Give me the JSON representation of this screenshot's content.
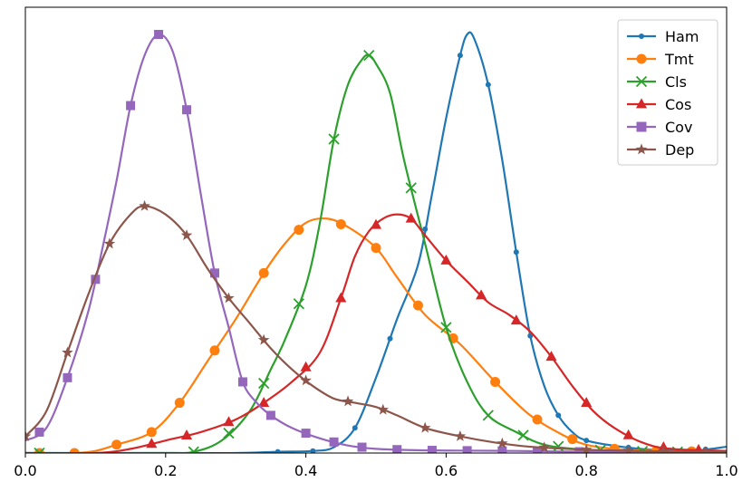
{
  "chart_data": {
    "type": "line",
    "title": "",
    "xlabel": "",
    "ylabel": "",
    "xlim": [
      0.0,
      1.0
    ],
    "ylim": [
      0.0,
      1.0
    ],
    "xticks": [
      "0.0",
      "0.2",
      "0.4",
      "0.6",
      "0.8",
      "1.0"
    ],
    "xtick_values": [
      0.0,
      0.2,
      0.4,
      0.6,
      0.8,
      1.0
    ],
    "yticks": [],
    "grid": false,
    "legend": {
      "placement": "top-right"
    },
    "series": [
      {
        "name": "Ham",
        "color": "#1f77b4",
        "marker": "circle",
        "points": [
          [
            0.0,
            0.0
          ],
          [
            0.2,
            0.0
          ],
          [
            0.3,
            0.0
          ],
          [
            0.36,
            0.003
          ],
          [
            0.41,
            0.005
          ],
          [
            0.44,
            0.014
          ],
          [
            0.47,
            0.06
          ],
          [
            0.5,
            0.18
          ],
          [
            0.53,
            0.32
          ],
          [
            0.56,
            0.45
          ],
          [
            0.58,
            0.62
          ],
          [
            0.6,
            0.8
          ],
          [
            0.62,
            0.95
          ],
          [
            0.63,
            1.0
          ],
          [
            0.64,
            0.99
          ],
          [
            0.66,
            0.88
          ],
          [
            0.68,
            0.7
          ],
          [
            0.7,
            0.48
          ],
          [
            0.72,
            0.28
          ],
          [
            0.74,
            0.16
          ],
          [
            0.76,
            0.09
          ],
          [
            0.78,
            0.05
          ],
          [
            0.8,
            0.03
          ],
          [
            0.85,
            0.015
          ],
          [
            0.9,
            0.007
          ],
          [
            0.95,
            0.005
          ],
          [
            1.0,
            0.015
          ]
        ]
      },
      {
        "name": "Tmt",
        "color": "#ff7f0e",
        "marker": "circle",
        "points": [
          [
            0.02,
            0.0
          ],
          [
            0.07,
            0.0
          ],
          [
            0.1,
            0.005
          ],
          [
            0.13,
            0.02
          ],
          [
            0.18,
            0.05
          ],
          [
            0.22,
            0.12
          ],
          [
            0.26,
            0.22
          ],
          [
            0.3,
            0.32
          ],
          [
            0.34,
            0.43
          ],
          [
            0.37,
            0.5
          ],
          [
            0.4,
            0.55
          ],
          [
            0.43,
            0.56
          ],
          [
            0.46,
            0.54
          ],
          [
            0.5,
            0.49
          ],
          [
            0.53,
            0.42
          ],
          [
            0.57,
            0.33
          ],
          [
            0.62,
            0.26
          ],
          [
            0.67,
            0.17
          ],
          [
            0.72,
            0.09
          ],
          [
            0.77,
            0.04
          ],
          [
            0.8,
            0.02
          ],
          [
            0.84,
            0.01
          ],
          [
            0.9,
            0.005
          ],
          [
            1.0,
            0.003
          ]
        ]
      },
      {
        "name": "Cls",
        "color": "#2ca02c",
        "marker": "x",
        "points": [
          [
            0.0,
            0.0
          ],
          [
            0.2,
            0.0
          ],
          [
            0.24,
            0.003
          ],
          [
            0.28,
            0.03
          ],
          [
            0.32,
            0.1
          ],
          [
            0.35,
            0.2
          ],
          [
            0.37,
            0.27
          ],
          [
            0.4,
            0.4
          ],
          [
            0.42,
            0.55
          ],
          [
            0.44,
            0.75
          ],
          [
            0.46,
            0.88
          ],
          [
            0.48,
            0.94
          ],
          [
            0.49,
            0.95
          ],
          [
            0.5,
            0.93
          ],
          [
            0.52,
            0.86
          ],
          [
            0.54,
            0.7
          ],
          [
            0.57,
            0.5
          ],
          [
            0.6,
            0.3
          ],
          [
            0.63,
            0.17
          ],
          [
            0.66,
            0.09
          ],
          [
            0.7,
            0.05
          ],
          [
            0.74,
            0.02
          ],
          [
            0.8,
            0.008
          ],
          [
            0.9,
            0.003
          ],
          [
            1.0,
            0.002
          ]
        ]
      },
      {
        "name": "Cos",
        "color": "#d62728",
        "marker": "triangle",
        "points": [
          [
            0.0,
            0.0
          ],
          [
            0.1,
            0.0
          ],
          [
            0.15,
            0.01
          ],
          [
            0.2,
            0.03
          ],
          [
            0.25,
            0.05
          ],
          [
            0.3,
            0.08
          ],
          [
            0.34,
            0.12
          ],
          [
            0.38,
            0.17
          ],
          [
            0.42,
            0.24
          ],
          [
            0.45,
            0.37
          ],
          [
            0.47,
            0.47
          ],
          [
            0.49,
            0.53
          ],
          [
            0.51,
            0.56
          ],
          [
            0.53,
            0.57
          ],
          [
            0.55,
            0.56
          ],
          [
            0.57,
            0.52
          ],
          [
            0.6,
            0.46
          ],
          [
            0.63,
            0.41
          ],
          [
            0.66,
            0.36
          ],
          [
            0.69,
            0.33
          ],
          [
            0.72,
            0.29
          ],
          [
            0.75,
            0.23
          ],
          [
            0.78,
            0.16
          ],
          [
            0.81,
            0.1
          ],
          [
            0.84,
            0.06
          ],
          [
            0.88,
            0.025
          ],
          [
            0.92,
            0.01
          ],
          [
            1.0,
            0.005
          ]
        ]
      },
      {
        "name": "Cov",
        "color": "#9467bd",
        "marker": "square",
        "points": [
          [
            0.0,
            0.03
          ],
          [
            0.03,
            0.06
          ],
          [
            0.06,
            0.18
          ],
          [
            0.09,
            0.34
          ],
          [
            0.11,
            0.49
          ],
          [
            0.13,
            0.65
          ],
          [
            0.15,
            0.83
          ],
          [
            0.17,
            0.95
          ],
          [
            0.19,
            1.0
          ],
          [
            0.21,
            0.96
          ],
          [
            0.23,
            0.82
          ],
          [
            0.25,
            0.62
          ],
          [
            0.27,
            0.43
          ],
          [
            0.29,
            0.3
          ],
          [
            0.31,
            0.17
          ],
          [
            0.33,
            0.12
          ],
          [
            0.35,
            0.09
          ],
          [
            0.38,
            0.06
          ],
          [
            0.42,
            0.035
          ],
          [
            0.46,
            0.018
          ],
          [
            0.5,
            0.01
          ],
          [
            0.55,
            0.007
          ],
          [
            0.6,
            0.006
          ],
          [
            0.7,
            0.005
          ],
          [
            0.8,
            0.003
          ],
          [
            1.0,
            0.002
          ]
        ]
      },
      {
        "name": "Dep",
        "color": "#8c564b",
        "marker": "star",
        "points": [
          [
            0.0,
            0.04
          ],
          [
            0.03,
            0.1
          ],
          [
            0.06,
            0.24
          ],
          [
            0.09,
            0.38
          ],
          [
            0.12,
            0.5
          ],
          [
            0.15,
            0.57
          ],
          [
            0.17,
            0.59
          ],
          [
            0.2,
            0.57
          ],
          [
            0.23,
            0.52
          ],
          [
            0.26,
            0.44
          ],
          [
            0.29,
            0.37
          ],
          [
            0.32,
            0.31
          ],
          [
            0.35,
            0.25
          ],
          [
            0.38,
            0.2
          ],
          [
            0.41,
            0.16
          ],
          [
            0.44,
            0.13
          ],
          [
            0.47,
            0.12
          ],
          [
            0.5,
            0.11
          ],
          [
            0.53,
            0.09
          ],
          [
            0.57,
            0.06
          ],
          [
            0.62,
            0.04
          ],
          [
            0.67,
            0.025
          ],
          [
            0.72,
            0.015
          ],
          [
            0.8,
            0.008
          ],
          [
            0.9,
            0.004
          ],
          [
            1.0,
            0.002
          ]
        ]
      }
    ],
    "marker_points": {
      "Ham": [
        0.36,
        0.41,
        0.47,
        0.52,
        0.57,
        0.62,
        0.66,
        0.7,
        0.72,
        0.76,
        0.8,
        0.86,
        0.92,
        0.97
      ],
      "Tmt": [
        0.02,
        0.07,
        0.13,
        0.18,
        0.22,
        0.27,
        0.34,
        0.39,
        0.45,
        0.5,
        0.56,
        0.61,
        0.67,
        0.73,
        0.78,
        0.84,
        0.9,
        0.95
      ],
      "Cls": [
        0.02,
        0.24,
        0.29,
        0.34,
        0.39,
        0.44,
        0.49,
        0.55,
        0.6,
        0.66,
        0.71,
        0.76,
        0.82,
        0.88,
        0.93
      ],
      "Cos": [
        0.18,
        0.23,
        0.29,
        0.34,
        0.4,
        0.45,
        0.5,
        0.55,
        0.6,
        0.65,
        0.7,
        0.75,
        0.8,
        0.86,
        0.91,
        0.96
      ],
      "Cov": [
        0.02,
        0.06,
        0.1,
        0.15,
        0.19,
        0.23,
        0.27,
        0.31,
        0.35,
        0.4,
        0.44,
        0.48,
        0.53,
        0.58,
        0.63,
        0.68,
        0.73,
        0.79
      ],
      "Dep": [
        0.0,
        0.06,
        0.12,
        0.17,
        0.23,
        0.29,
        0.34,
        0.4,
        0.46,
        0.51,
        0.57,
        0.62,
        0.68,
        0.74,
        0.8,
        0.86,
        0.91,
        0.97
      ]
    }
  }
}
